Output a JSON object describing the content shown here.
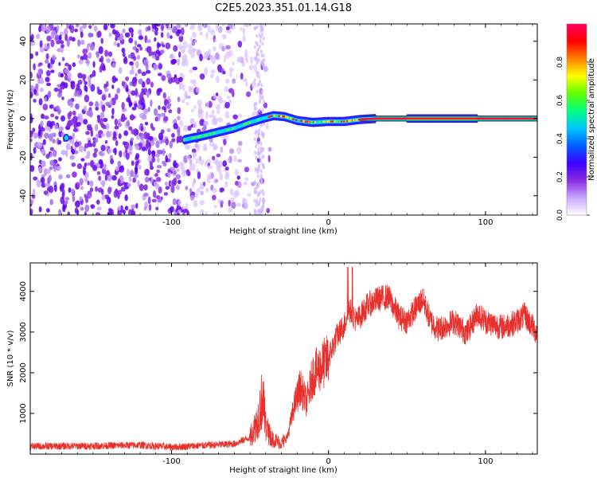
{
  "title": "C2E5.2023.351.01.14.G18",
  "chart_data": [
    {
      "type": "heatmap",
      "xlabel": "Height of straight line (km)",
      "ylabel": "Frequency (Hz)",
      "xlim": [
        -190,
        133
      ],
      "ylim": [
        -50,
        49
      ],
      "xticks": [
        -100,
        0,
        100
      ],
      "yticks": [
        -40,
        -20,
        0,
        20,
        40
      ],
      "colorbar": {
        "label": "Normalized spectral amplitude",
        "range": [
          0,
          1
        ],
        "ticks": [
          "0.0",
          "0.2",
          "0.4",
          "0.6",
          "0.8"
        ],
        "colors": [
          "#ffffff",
          "#c9a6ff",
          "#8a2be2",
          "#3a00ff",
          "#0060ff",
          "#00c8ff",
          "#00ff80",
          "#60ff00",
          "#ffff00",
          "#ff8000",
          "#ff0000",
          "#ff0060"
        ]
      },
      "ridge": [
        {
          "x": -92,
          "y": -11
        },
        {
          "x": -80,
          "y": -9
        },
        {
          "x": -70,
          "y": -7
        },
        {
          "x": -60,
          "y": -5
        },
        {
          "x": -50,
          "y": -2
        },
        {
          "x": -42,
          "y": 0
        },
        {
          "x": -35,
          "y": 1.5
        },
        {
          "x": -28,
          "y": 1
        },
        {
          "x": -20,
          "y": -1
        },
        {
          "x": -10,
          "y": -2
        },
        {
          "x": 0,
          "y": -1.5
        },
        {
          "x": 10,
          "y": -1.5
        },
        {
          "x": 20,
          "y": -0.5
        },
        {
          "x": 30,
          "y": 0
        },
        {
          "x": 133,
          "y": 0
        }
      ],
      "noise_region": [
        -190,
        -60
      ],
      "isolated_point": {
        "x": -167,
        "y": -10
      }
    },
    {
      "type": "line",
      "xlabel": "Height of straight line (km)",
      "ylabel": "SNR (10 * v/v)",
      "xlim": [
        -190,
        133
      ],
      "ylim": [
        0,
        4700
      ],
      "xticks": [
        -100,
        0,
        100
      ],
      "yticks": [
        1000,
        2000,
        3000,
        4000
      ],
      "color": "#e8302c",
      "envelope": [
        {
          "x": -190,
          "y": 200
        },
        {
          "x": -150,
          "y": 210
        },
        {
          "x": -120,
          "y": 230
        },
        {
          "x": -100,
          "y": 180
        },
        {
          "x": -80,
          "y": 220
        },
        {
          "x": -60,
          "y": 260
        },
        {
          "x": -50,
          "y": 420
        },
        {
          "x": -45,
          "y": 900
        },
        {
          "x": -42,
          "y": 1500
        },
        {
          "x": -40,
          "y": 700
        },
        {
          "x": -36,
          "y": 400
        },
        {
          "x": -30,
          "y": 280
        },
        {
          "x": -26,
          "y": 450
        },
        {
          "x": -22,
          "y": 1200
        },
        {
          "x": -18,
          "y": 1700
        },
        {
          "x": -14,
          "y": 1300
        },
        {
          "x": -10,
          "y": 2000
        },
        {
          "x": -5,
          "y": 2200
        },
        {
          "x": 0,
          "y": 2400
        },
        {
          "x": 5,
          "y": 2900
        },
        {
          "x": 10,
          "y": 3200
        },
        {
          "x": 13,
          "y": 3600
        },
        {
          "x": 18,
          "y": 3300
        },
        {
          "x": 25,
          "y": 3700
        },
        {
          "x": 32,
          "y": 3850
        },
        {
          "x": 38,
          "y": 3900
        },
        {
          "x": 45,
          "y": 3400
        },
        {
          "x": 50,
          "y": 3300
        },
        {
          "x": 57,
          "y": 3700
        },
        {
          "x": 60,
          "y": 3850
        },
        {
          "x": 65,
          "y": 3300
        },
        {
          "x": 70,
          "y": 3100
        },
        {
          "x": 80,
          "y": 3300
        },
        {
          "x": 88,
          "y": 3000
        },
        {
          "x": 95,
          "y": 3500
        },
        {
          "x": 100,
          "y": 3300
        },
        {
          "x": 110,
          "y": 3150
        },
        {
          "x": 118,
          "y": 3250
        },
        {
          "x": 125,
          "y": 3450
        },
        {
          "x": 133,
          "y": 3000
        }
      ]
    }
  ]
}
